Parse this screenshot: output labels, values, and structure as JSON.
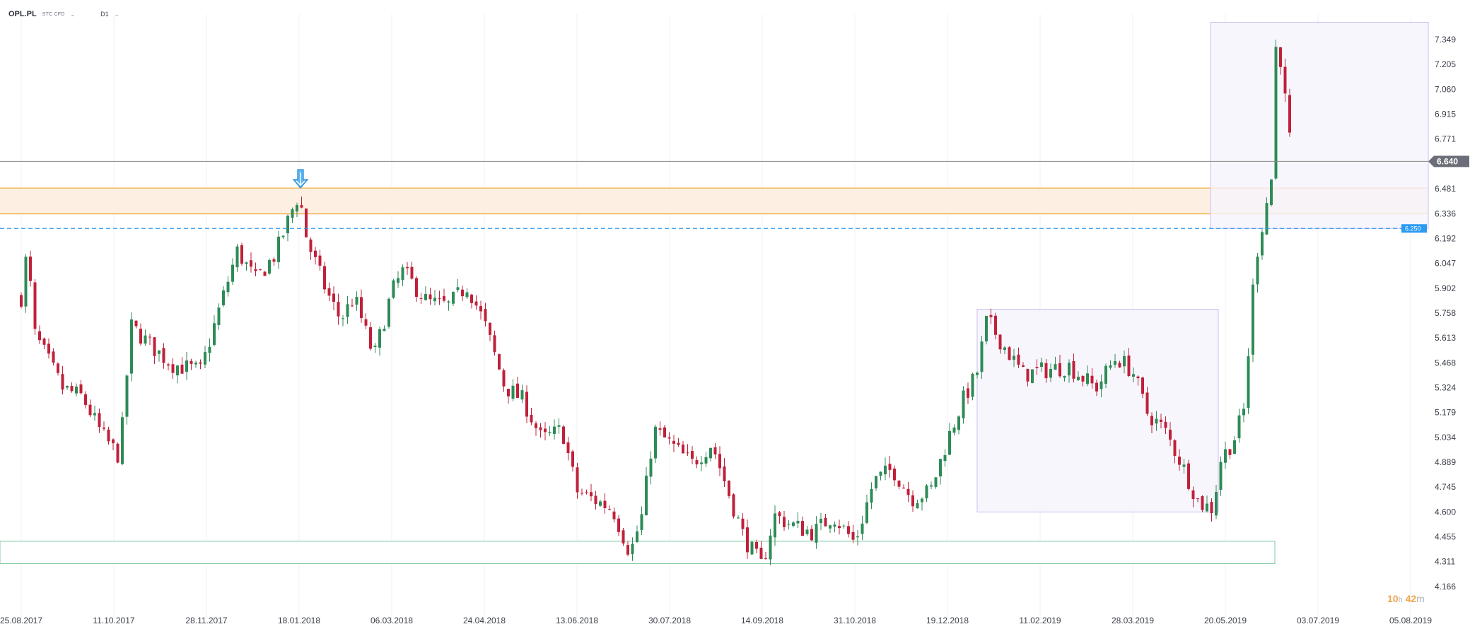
{
  "header": {
    "symbol": "OPL.PL",
    "instrument": "STC CFD",
    "timeframe": "D1"
  },
  "countdown": {
    "hours": "10",
    "hours_unit": "h",
    "minutes": "42",
    "minutes_unit": "m"
  },
  "colors": {
    "up": "#2e8b57",
    "down": "#c0203a",
    "price_line": "#888888",
    "resistance_zone_fill": "#fdf0e2",
    "resistance_zone_border": "#f3b04a",
    "support_zone_fill": "#ffffff",
    "support_zone_border": "#7bc8a0",
    "dashed_level": "#2b9af3",
    "range_box_fill": "#f6f4fd",
    "range_box_border": "#c7bdf0",
    "price_badge": "#6b6e78",
    "level_badge": "#2b9af3"
  },
  "chart_data": {
    "type": "candlestick",
    "x_tick_labels": [
      "25.08.2017",
      "11.10.2017",
      "28.11.2017",
      "18.01.2018",
      "06.03.2018",
      "24.04.2018",
      "13.06.2018",
      "30.07.2018",
      "14.09.2018",
      "31.10.2018",
      "19.12.2018",
      "11.02.2019",
      "28.03.2019",
      "20.05.2019",
      "03.07.2019",
      "05.08.2019"
    ],
    "y_tick_labels": [
      "7.349",
      "7.205",
      "7.060",
      "6.915",
      "6.771",
      "6.640",
      "6.481",
      "6.336",
      "6.192",
      "6.047",
      "5.902",
      "5.758",
      "5.613",
      "5.468",
      "5.324",
      "5.179",
      "5.034",
      "4.889",
      "4.745",
      "4.600",
      "4.455",
      "4.311",
      "4.166"
    ],
    "ylim": [
      4.166,
      7.349
    ],
    "current_price": "6.640",
    "current_price_value": 6.64,
    "dashed_level": "6.250",
    "dashed_level_value": 6.25,
    "resistance_zone": [
      6.335,
      6.485
    ],
    "support_zone": [
      4.3,
      4.43
    ],
    "range_boxes": [
      {
        "from_bar": 795,
        "to_bar": 1005,
        "low": 4.6,
        "high": 5.78
      },
      {
        "from_bar": 1000,
        "to_bar": 1070,
        "low": 6.25,
        "high": 7.45
      }
    ],
    "marker": {
      "type": "arrow-down",
      "at": "18.01.2018",
      "price": 6.52
    },
    "waypoints": [
      [
        "25.08.2017",
        5.85
      ],
      [
        "28.08.2017",
        6.12
      ],
      [
        "01.09.2017",
        5.63
      ],
      [
        "15.09.2017",
        5.32
      ],
      [
        "25.09.2017",
        5.27
      ],
      [
        "05.10.2017",
        5.05
      ],
      [
        "14.10.2017",
        4.92
      ],
      [
        "20.10.2017",
        5.68
      ],
      [
        "01.11.2017",
        5.55
      ],
      [
        "10.11.2017",
        5.46
      ],
      [
        "25.11.2017",
        5.42
      ],
      [
        "05.12.2017",
        5.78
      ],
      [
        "15.12.2017",
        6.12
      ],
      [
        "25.12.2017",
        5.95
      ],
      [
        "05.01.2018",
        6.1
      ],
      [
        "15.01.2018",
        6.38
      ],
      [
        "18.01.2018",
        6.45
      ],
      [
        "22.01.2018",
        6.18
      ],
      [
        "01.02.2018",
        5.88
      ],
      [
        "08.02.2018",
        5.72
      ],
      [
        "15.02.2018",
        5.85
      ],
      [
        "25.02.2018",
        5.5
      ],
      [
        "06.03.2018",
        5.88
      ],
      [
        "12.03.2018",
        6.0
      ],
      [
        "25.03.2018",
        5.82
      ],
      [
        "05.04.2018",
        5.8
      ],
      [
        "15.04.2018",
        5.92
      ],
      [
        "24.04.2018",
        5.7
      ],
      [
        "05.05.2018",
        5.33
      ],
      [
        "15.05.2018",
        5.25
      ],
      [
        "25.05.2018",
        5.02
      ],
      [
        "05.06.2018",
        5.08
      ],
      [
        "13.06.2018",
        4.72
      ],
      [
        "20.06.2018",
        4.68
      ],
      [
        "01.07.2018",
        4.62
      ],
      [
        "10.07.2018",
        4.36
      ],
      [
        "16.07.2018",
        4.58
      ],
      [
        "22.07.2018",
        5.08
      ],
      [
        "30.07.2018",
        5.0
      ],
      [
        "10.08.2018",
        4.88
      ],
      [
        "20.08.2018",
        5.0
      ],
      [
        "28.08.2018",
        4.72
      ],
      [
        "05.09.2018",
        4.45
      ],
      [
        "14.09.2018",
        4.28
      ],
      [
        "20.09.2018",
        4.58
      ],
      [
        "30.09.2018",
        4.52
      ],
      [
        "10.10.2018",
        4.48
      ],
      [
        "20.10.2018",
        4.58
      ],
      [
        "31.10.2018",
        4.42
      ],
      [
        "10.11.2018",
        4.78
      ],
      [
        "20.11.2018",
        4.85
      ],
      [
        "30.11.2018",
        4.68
      ],
      [
        "10.12.2018",
        4.72
      ],
      [
        "19.12.2018",
        5.02
      ],
      [
        "28.12.2018",
        5.25
      ],
      [
        "05.01.2019",
        5.4
      ],
      [
        "11.01.2019",
        5.72
      ],
      [
        "20.01.2019",
        5.58
      ],
      [
        "01.02.2019",
        5.4
      ],
      [
        "11.02.2019",
        5.42
      ],
      [
        "25.02.2019",
        5.45
      ],
      [
        "10.03.2019",
        5.32
      ],
      [
        "20.03.2019",
        5.5
      ],
      [
        "28.03.2019",
        5.42
      ],
      [
        "05.04.2019",
        5.18
      ],
      [
        "15.04.2019",
        5.08
      ],
      [
        "25.04.2019",
        4.88
      ],
      [
        "05.05.2019",
        4.65
      ],
      [
        "13.05.2019",
        4.62
      ],
      [
        "17.05.2019",
        4.9
      ],
      [
        "24.05.2019",
        5.02
      ],
      [
        "29.05.2019",
        5.2
      ],
      [
        "03.06.2019",
        6.05
      ],
      [
        "07.06.2019",
        6.3
      ],
      [
        "11.06.2019",
        6.55
      ],
      [
        "13.06.2019",
        7.3
      ],
      [
        "15.06.2019",
        7.26
      ],
      [
        "19.06.2019",
        6.82
      ],
      [
        "21.06.2019",
        6.64
      ]
    ]
  }
}
